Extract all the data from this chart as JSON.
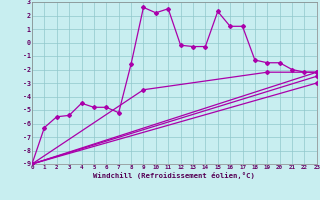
{
  "xlabel": "Windchill (Refroidissement éolien,°C)",
  "background_color": "#c8eef0",
  "grid_color": "#90c8cc",
  "line_color": "#aa00aa",
  "xlim": [
    0,
    23
  ],
  "ylim": [
    -9,
    3
  ],
  "xticks": [
    0,
    1,
    2,
    3,
    4,
    5,
    6,
    7,
    8,
    9,
    10,
    11,
    12,
    13,
    14,
    15,
    16,
    17,
    18,
    19,
    20,
    21,
    22,
    23
  ],
  "yticks": [
    3,
    2,
    1,
    0,
    -1,
    -2,
    -3,
    -4,
    -5,
    -6,
    -7,
    -8,
    -9
  ],
  "line_main_x": [
    0,
    1,
    2,
    3,
    4,
    5,
    6,
    7,
    8,
    9,
    10,
    11,
    12,
    13,
    14,
    15,
    16,
    17,
    18,
    19,
    20,
    21,
    22,
    23
  ],
  "line_main_y": [
    -9.0,
    -6.3,
    -5.5,
    -5.4,
    -4.5,
    -4.8,
    -4.8,
    -5.2,
    -1.6,
    2.6,
    2.2,
    2.5,
    -0.2,
    -0.3,
    -0.3,
    2.3,
    1.2,
    1.2,
    -1.3,
    -1.5,
    -1.5,
    -2.0,
    -2.2,
    -2.2
  ],
  "trend1_x": [
    0,
    9,
    19,
    23
  ],
  "trend1_y": [
    -9.0,
    -3.5,
    -2.2,
    -2.2
  ],
  "trend2_x": [
    0,
    23
  ],
  "trend2_y": [
    -9.0,
    -2.2
  ],
  "trend3_x": [
    0,
    23
  ],
  "trend3_y": [
    -9.0,
    -2.5
  ],
  "trend4_x": [
    0,
    23
  ],
  "trend4_y": [
    -9.0,
    -3.0
  ]
}
